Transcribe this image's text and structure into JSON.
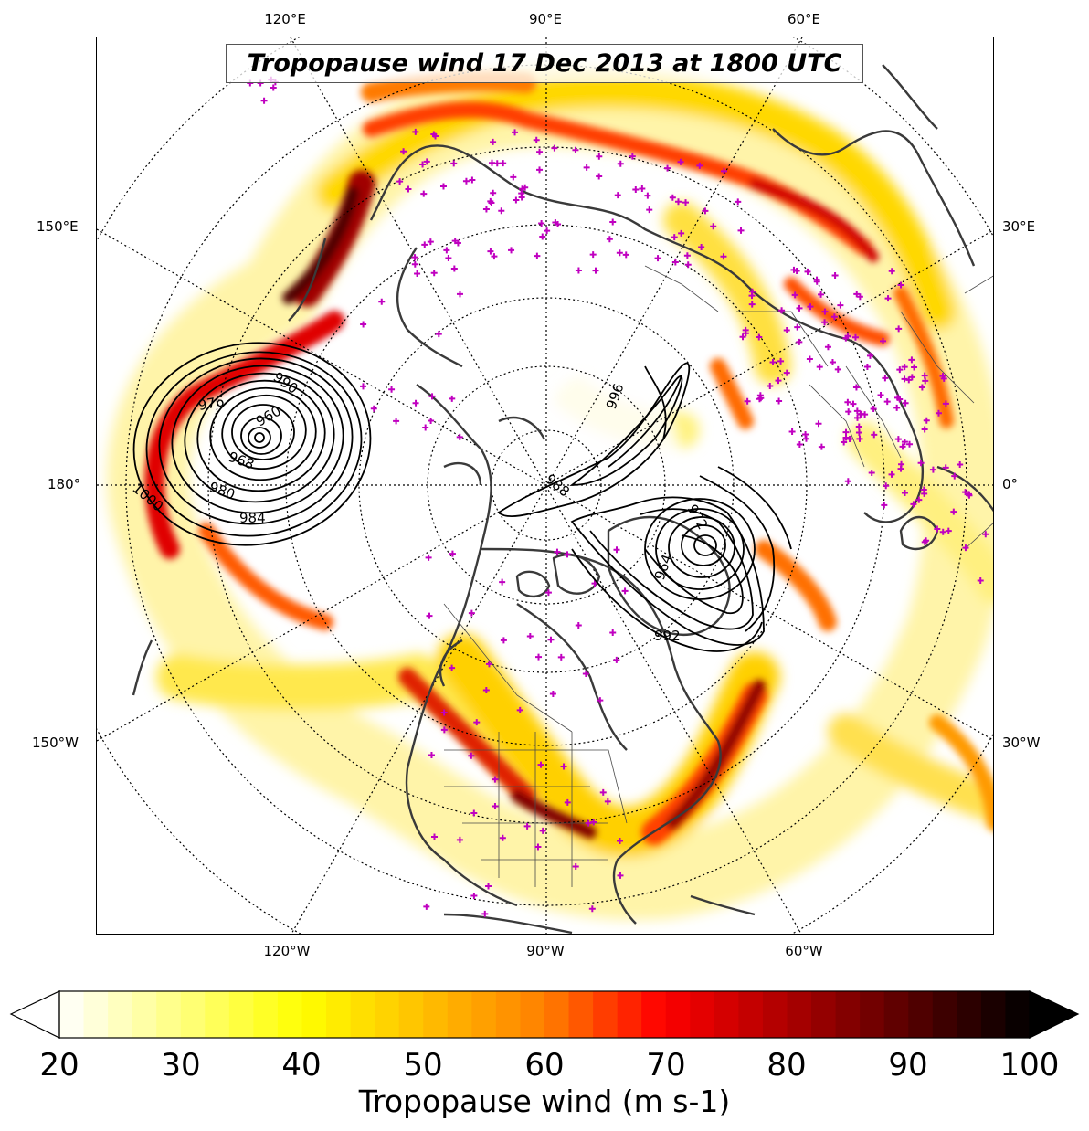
{
  "map": {
    "title": "Tropopause wind 17 Dec 2013 at 1800 UTC",
    "projection": "north-polar-stereographic",
    "lon_labels_top": [
      "120°E",
      "90°E",
      "60°E"
    ],
    "lon_labels_bottom": [
      "120°W",
      "90°W",
      "60°W"
    ],
    "lon_labels_left": [
      "150°E",
      "180°",
      "150°W"
    ],
    "lon_labels_right": [
      "30°E",
      "0°",
      "30°W"
    ],
    "contour_labels": [
      "990",
      "976",
      "968",
      "960",
      "984",
      "980",
      "1000",
      "992",
      "996",
      "988",
      "964",
      "972"
    ],
    "colors": {
      "coastline": "#3a3a3a",
      "station_marker": "#c000c0",
      "contour": "#000000",
      "graticule": "#000000"
    }
  },
  "colorbar": {
    "label": "Tropopause wind (m s-1)",
    "min": 20,
    "max": 100,
    "ticks": [
      "20",
      "30",
      "40",
      "50",
      "60",
      "70",
      "80",
      "90",
      "100"
    ],
    "colormap": "hot_r",
    "extend": "both"
  }
}
